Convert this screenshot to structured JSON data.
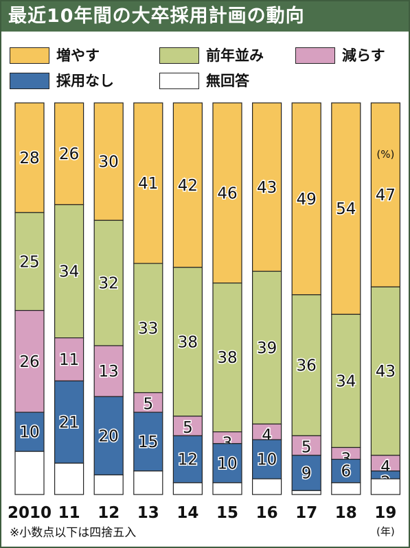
{
  "header": {
    "title": "最近10年間の大卒採用計画の動向"
  },
  "legend": [
    {
      "label": "増やす",
      "color": "#f6c65c",
      "icon": "swatch-yellow"
    },
    {
      "label": "前年並み",
      "color": "#c3cf86",
      "icon": "swatch-green"
    },
    {
      "label": "減らす",
      "color": "#d7a0c0",
      "icon": "swatch-pink"
    },
    {
      "label": "採用なし",
      "color": "#3f70a8",
      "icon": "swatch-blue"
    },
    {
      "label": "無回答",
      "color": "#ffffff",
      "icon": "swatch-white"
    }
  ],
  "chart_data": {
    "type": "bar",
    "stacked": true,
    "orientation": "vertical",
    "categories": [
      "2010",
      "11",
      "12",
      "13",
      "14",
      "15",
      "16",
      "17",
      "18",
      "19"
    ],
    "series": [
      {
        "name": "増やす",
        "values": [
          28,
          26,
          30,
          41,
          42,
          46,
          43,
          49,
          54,
          47
        ],
        "value_labels": [
          "28",
          "26",
          "30",
          "41",
          "42",
          "46",
          "43",
          "49",
          "54",
          "47"
        ]
      },
      {
        "name": "前年並み",
        "values": [
          25,
          34,
          32,
          33,
          38,
          38,
          39,
          36,
          34,
          43
        ],
        "value_labels": [
          "25",
          "34",
          "32",
          "33",
          "38",
          "38",
          "39",
          "36",
          "34",
          "43"
        ]
      },
      {
        "name": "減らす",
        "values": [
          26,
          11,
          13,
          5,
          5,
          3,
          4,
          5,
          3,
          4
        ],
        "value_labels": [
          "26",
          "11",
          "13",
          "5",
          "5",
          "3",
          "4",
          "5",
          "3",
          "4"
        ]
      },
      {
        "name": "採用なし",
        "values": [
          10,
          21,
          20,
          15,
          12,
          10,
          10,
          9,
          6,
          2
        ],
        "value_labels": [
          "10",
          "21",
          "20",
          "15",
          "12",
          "10",
          "10",
          "9",
          "6",
          "2"
        ]
      },
      {
        "name": "無回答",
        "values": [
          11,
          8,
          5,
          6,
          3,
          3,
          4,
          1,
          3,
          4
        ]
      }
    ],
    "unit_label": "(%)",
    "x_unit_label": "(年)",
    "ylim": [
      0,
      100
    ],
    "note": "※小数点以下は四捨五入"
  }
}
